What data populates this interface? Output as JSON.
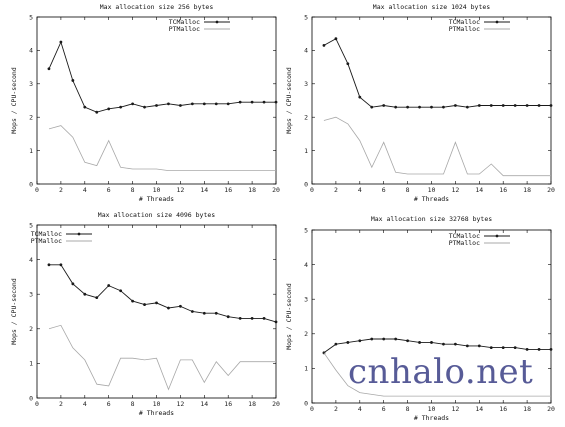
{
  "chart_data": [
    {
      "type": "line",
      "title": "Max allocation size 256 bytes",
      "xlabel": "# Threads",
      "ylabel": "Mops / CPU-second",
      "xlim": [
        0,
        20
      ],
      "ylim": [
        0,
        5
      ],
      "xticks": [
        "0",
        "2",
        "4",
        "6",
        "8",
        "10",
        "12",
        "14",
        "16",
        "18",
        "20"
      ],
      "yticks": [
        "0",
        "1",
        "2",
        "3",
        "4",
        "5"
      ],
      "legend_position": "top-right",
      "x": [
        1,
        2,
        3,
        4,
        5,
        6,
        7,
        8,
        9,
        10,
        11,
        12,
        13,
        14,
        15,
        16,
        17,
        18,
        19,
        20
      ],
      "series": [
        {
          "name": "TCMalloc",
          "marker": "dot",
          "values": [
            3.45,
            4.25,
            3.1,
            2.3,
            2.15,
            2.25,
            2.3,
            2.4,
            2.3,
            2.35,
            2.4,
            2.35,
            2.4,
            2.4,
            2.4,
            2.4,
            2.45,
            2.45,
            2.45,
            2.45
          ]
        },
        {
          "name": "PTMalloc",
          "marker": "none",
          "values": [
            1.65,
            1.75,
            1.4,
            0.65,
            0.55,
            1.3,
            0.5,
            0.45,
            0.45,
            0.45,
            0.4,
            0.4,
            0.4,
            0.4,
            0.4,
            0.4,
            0.4,
            0.4,
            0.4,
            0.4
          ]
        }
      ]
    },
    {
      "type": "line",
      "title": "Max allocation size 1024 bytes",
      "xlabel": "# Threads",
      "ylabel": "Mops / CPU-second",
      "xlim": [
        0,
        20
      ],
      "ylim": [
        0,
        5
      ],
      "xticks": [
        "0",
        "2",
        "4",
        "6",
        "8",
        "10",
        "12",
        "14",
        "16",
        "18",
        "20"
      ],
      "yticks": [
        "0",
        "1",
        "2",
        "3",
        "4",
        "5"
      ],
      "legend_position": "top-right",
      "x": [
        1,
        2,
        3,
        4,
        5,
        6,
        7,
        8,
        9,
        10,
        11,
        12,
        13,
        14,
        15,
        16,
        17,
        18,
        19,
        20
      ],
      "series": [
        {
          "name": "TCMalloc",
          "marker": "dot",
          "values": [
            4.15,
            4.35,
            3.6,
            2.6,
            2.3,
            2.35,
            2.3,
            2.3,
            2.3,
            2.3,
            2.3,
            2.35,
            2.3,
            2.35,
            2.35,
            2.35,
            2.35,
            2.35,
            2.35,
            2.35
          ]
        },
        {
          "name": "PTMalloc",
          "marker": "none",
          "values": [
            1.9,
            2.0,
            1.8,
            1.3,
            0.5,
            1.25,
            0.35,
            0.3,
            0.3,
            0.3,
            0.3,
            1.25,
            0.3,
            0.3,
            0.6,
            0.25,
            0.25,
            0.25,
            0.25,
            0.25
          ]
        }
      ]
    },
    {
      "type": "line",
      "title": "Max allocation size 4096 bytes",
      "xlabel": "# Threads",
      "ylabel": "Mops / CPU-second",
      "xlim": [
        0,
        20
      ],
      "ylim": [
        0,
        5
      ],
      "xticks": [
        "0",
        "2",
        "4",
        "6",
        "8",
        "10",
        "12",
        "14",
        "16",
        "18",
        "20"
      ],
      "yticks": [
        "0",
        "1",
        "2",
        "3",
        "4",
        "5"
      ],
      "legend_position": "top-left",
      "x": [
        1,
        2,
        3,
        4,
        5,
        6,
        7,
        8,
        9,
        10,
        11,
        12,
        13,
        14,
        15,
        16,
        17,
        18,
        19,
        20
      ],
      "series": [
        {
          "name": "TCMalloc",
          "marker": "dot",
          "values": [
            3.85,
            3.85,
            3.3,
            3.0,
            2.9,
            3.25,
            3.1,
            2.8,
            2.7,
            2.75,
            2.6,
            2.65,
            2.5,
            2.45,
            2.45,
            2.35,
            2.3,
            2.3,
            2.3,
            2.2
          ]
        },
        {
          "name": "PTMalloc",
          "marker": "none",
          "values": [
            2.0,
            2.1,
            1.45,
            1.1,
            0.4,
            0.35,
            1.15,
            1.15,
            1.1,
            1.15,
            0.25,
            1.1,
            1.1,
            0.45,
            1.05,
            0.65,
            1.05,
            1.05,
            1.05,
            1.05
          ]
        }
      ]
    },
    {
      "type": "line",
      "title": "Max allocation size 32768 bytes",
      "xlabel": "# Threads",
      "ylabel": "Mops / CPU-second",
      "xlim": [
        0,
        20
      ],
      "ylim": [
        0,
        5
      ],
      "xticks": [
        "0",
        "2",
        "4",
        "6",
        "8",
        "10",
        "12",
        "14",
        "16",
        "18",
        "20"
      ],
      "yticks": [
        "0",
        "1",
        "2",
        "3",
        "4",
        "5"
      ],
      "legend_position": "top-right",
      "x": [
        1,
        2,
        3,
        4,
        5,
        6,
        7,
        8,
        9,
        10,
        11,
        12,
        13,
        14,
        15,
        16,
        17,
        18,
        19,
        20
      ],
      "series": [
        {
          "name": "TCMalloc",
          "marker": "dot",
          "values": [
            1.45,
            1.7,
            1.75,
            1.8,
            1.85,
            1.85,
            1.85,
            1.8,
            1.75,
            1.75,
            1.7,
            1.7,
            1.65,
            1.65,
            1.6,
            1.6,
            1.6,
            1.55,
            1.55,
            1.55
          ]
        },
        {
          "name": "PTMalloc",
          "marker": "none",
          "values": [
            1.45,
            0.95,
            0.5,
            0.3,
            0.25,
            0.2,
            0.2,
            0.2,
            0.2,
            0.2,
            0.2,
            0.2,
            0.2,
            0.2,
            0.2,
            0.2,
            0.2,
            0.2,
            0.2,
            0.2
          ]
        }
      ]
    }
  ],
  "watermark": "cnhalo.net",
  "colors": {
    "tcmalloc": "#1a1a1a",
    "ptmalloc": "#a8a8a8",
    "axis": "#000000",
    "background": "#ffffff",
    "watermark": "#3a3f86"
  }
}
